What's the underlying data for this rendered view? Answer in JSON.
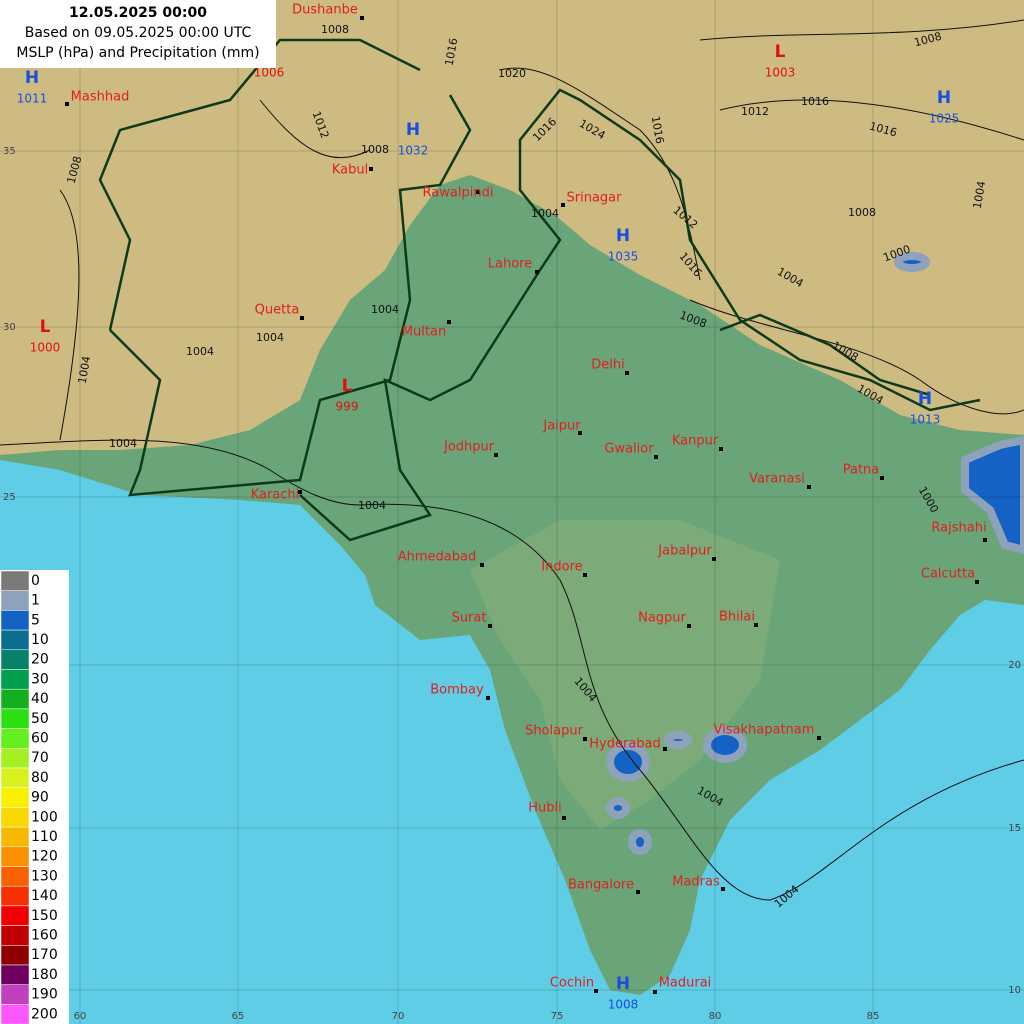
{
  "header": {
    "lines": [
      "12.05.2025 00:00",
      "Based on 09.05.2025 00:00 UTC",
      "MSLP (hPa) and Precipitation (mm)"
    ]
  },
  "cities": [
    "Dushanbe",
    "Mashhad",
    "Kabul",
    "Rawalpindi",
    "Srinagar",
    "Lahore",
    "Quetta",
    "Multan",
    "Delhi",
    "Jaipur",
    "Jodhpur",
    "Gwalior",
    "Kanpur",
    "Varanasi",
    "Patna",
    "Karachi",
    "Rajshahi",
    "Ahmedabad",
    "Indore",
    "Jabalpur",
    "Calcutta",
    "Surat",
    "Nagpur",
    "Bhilai",
    "Bombay",
    "Sholapur",
    "Hyderabad",
    "Visakhapatnam",
    "Hubli",
    "Bangalore",
    "Madras",
    "Cochin",
    "Madurai"
  ],
  "pressure_centers": [
    {
      "letter": "H",
      "value": 1011
    },
    {
      "letter": "L",
      "value": 1003
    },
    {
      "letter": "H",
      "value": 1032
    },
    {
      "letter": "H",
      "value": 1025
    },
    {
      "letter": "H",
      "value": 1035
    },
    {
      "letter": "L",
      "value": 1000
    },
    {
      "letter": "L",
      "value": 999
    },
    {
      "letter": "H",
      "value": 1013
    },
    {
      "letter": "H",
      "value": 1008
    },
    {
      "letter": null,
      "value": 1006
    }
  ],
  "isobar_labels": [
    1008,
    1016,
    1020,
    1012,
    1008,
    1008,
    1016,
    1024,
    1016,
    1008,
    1016,
    1012,
    1016,
    1004,
    1008,
    1000,
    1004,
    1012,
    1016,
    1008,
    1008,
    1004,
    1004,
    1004,
    1004,
    1004,
    1004,
    1004,
    1004,
    1000,
    1004,
    1004,
    1004
  ],
  "longitudes": [
    60,
    65,
    70,
    75,
    80,
    85
  ],
  "latitudes": [
    35,
    30,
    25,
    20,
    15,
    10
  ],
  "legend": {
    "values": [
      0,
      1,
      5,
      10,
      20,
      30,
      40,
      50,
      60,
      70,
      80,
      90,
      100,
      110,
      120,
      130,
      140,
      150,
      160,
      170,
      180,
      190,
      200
    ],
    "colors": [
      "#7a7a7a",
      "#8ea3bb",
      "#1462c4",
      "#0a6f8e",
      "#08806a",
      "#00a050",
      "#12b020",
      "#2ae010",
      "#64f020",
      "#a4f020",
      "#d8f020",
      "#f8f000",
      "#f8d800",
      "#f8b800",
      "#f89000",
      "#f86000",
      "#f83000",
      "#f00000",
      "#c00000",
      "#900000",
      "#700060",
      "#c040c0",
      "#ff55ff"
    ]
  }
}
